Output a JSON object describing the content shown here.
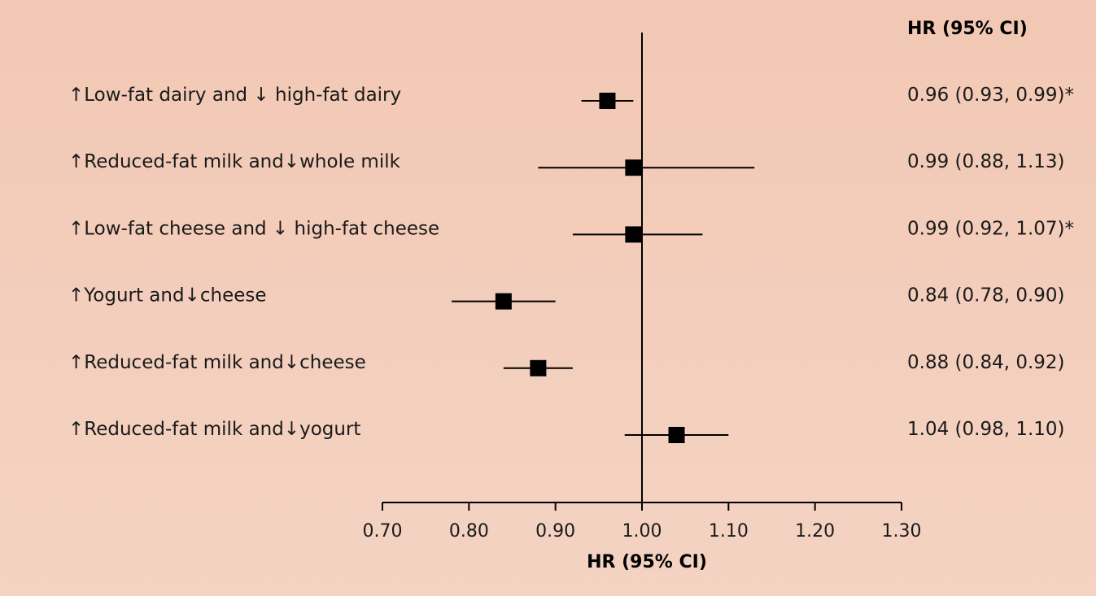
{
  "chart_data": {
    "type": "forest",
    "right_header": "HR (95% CI)",
    "xlabel": "HR (95% CI)",
    "xlim": [
      0.7,
      1.3
    ],
    "x_ticks": [
      "0.70",
      "0.80",
      "0.90",
      "1.00",
      "1.10",
      "1.20",
      "1.30"
    ],
    "reference_line": 1.0,
    "rows": [
      {
        "label": "↑Low-fat dairy and ↓ high-fat dairy",
        "hr": 0.96,
        "lo": 0.93,
        "hi": 0.99,
        "text": "0.96 (0.93, 0.99)*"
      },
      {
        "label": "↑Reduced-fat milk and↓whole milk",
        "hr": 0.99,
        "lo": 0.88,
        "hi": 1.13,
        "text": "0.99 (0.88, 1.13)"
      },
      {
        "label": "↑Low-fat cheese and ↓ high-fat cheese",
        "hr": 0.99,
        "lo": 0.92,
        "hi": 1.07,
        "text": "0.99 (0.92, 1.07)*"
      },
      {
        "label": "↑Yogurt and↓cheese",
        "hr": 0.84,
        "lo": 0.78,
        "hi": 0.9,
        "text": "0.84 (0.78, 0.90)"
      },
      {
        "label": "↑Reduced-fat milk and↓cheese",
        "hr": 0.88,
        "lo": 0.84,
        "hi": 0.92,
        "text": "0.88 (0.84, 0.92)"
      },
      {
        "label": "↑Reduced-fat milk and↓yogurt",
        "hr": 1.04,
        "lo": 0.98,
        "hi": 1.1,
        "text": "1.04 (0.98, 1.10)"
      }
    ]
  }
}
